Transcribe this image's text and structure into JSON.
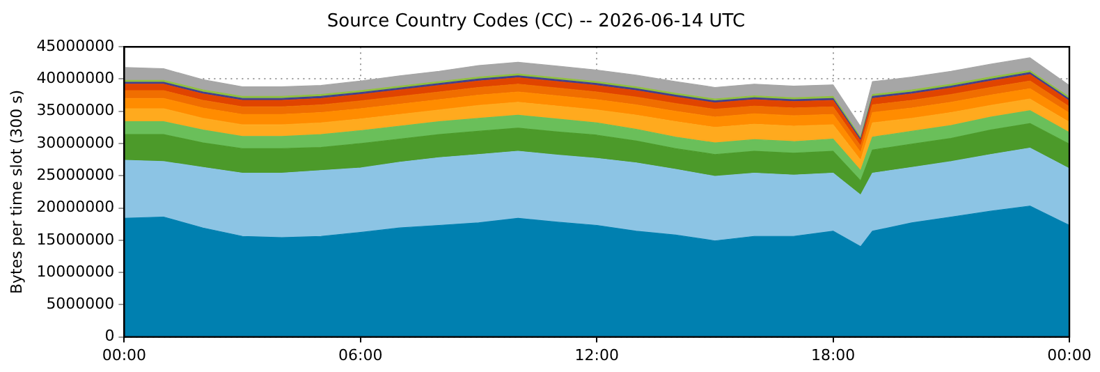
{
  "chart_data": {
    "type": "area",
    "stacked": true,
    "title": "Source Country Codes (CC) -- 2026-06-14 UTC",
    "ylabel": "Bytes per time slot (300 s)",
    "x": [
      0,
      1,
      2,
      3,
      4,
      5,
      6,
      7,
      8,
      9,
      10,
      11,
      12,
      13,
      14,
      15,
      16,
      17,
      18,
      18.7,
      19,
      20,
      21,
      22,
      23,
      24
    ],
    "series": [
      {
        "color": "#0080b0",
        "values": [
          18400000,
          18600000,
          16900000,
          15600000,
          15400000,
          15600000,
          16200000,
          16900000,
          17300000,
          17700000,
          18400000,
          17800000,
          17300000,
          16400000,
          15800000,
          14900000,
          15600000,
          15600000,
          16400000,
          14000000,
          16400000,
          17700000,
          18600000,
          19500000,
          20300000,
          17300000
        ]
      },
      {
        "color": "#8cc4e4",
        "values": [
          9000000,
          8600000,
          9400000,
          9800000,
          10000000,
          10200000,
          10000000,
          10200000,
          10500000,
          10600000,
          10400000,
          10400000,
          10400000,
          10600000,
          10200000,
          10000000,
          9800000,
          9500000,
          9000000,
          8000000,
          9000000,
          8600000,
          8600000,
          8800000,
          9000000,
          8800000
        ]
      },
      {
        "color": "#4c9a2a",
        "values": [
          4000000,
          4200000,
          3800000,
          3800000,
          3800000,
          3600000,
          3800000,
          3600000,
          3600000,
          3600000,
          3600000,
          3600000,
          3600000,
          3400000,
          3200000,
          3400000,
          3400000,
          3400000,
          3400000,
          2200000,
          3600000,
          3600000,
          3600000,
          3800000,
          3800000,
          3800000
        ]
      },
      {
        "color": "#6abf5a",
        "values": [
          2000000,
          2000000,
          2000000,
          1900000,
          1900000,
          2000000,
          2000000,
          2000000,
          2000000,
          2000000,
          2000000,
          2000000,
          1900000,
          1800000,
          1800000,
          1800000,
          1800000,
          1800000,
          1900000,
          1600000,
          2000000,
          2000000,
          2000000,
          2000000,
          2000000,
          1800000
        ]
      },
      {
        "color": "#ffaa1e",
        "values": [
          2000000,
          2000000,
          1800000,
          1800000,
          1800000,
          1800000,
          1800000,
          1800000,
          1800000,
          2000000,
          2000000,
          2000000,
          2000000,
          2200000,
          2400000,
          2400000,
          2400000,
          2400000,
          2200000,
          1600000,
          2200000,
          2000000,
          2000000,
          1800000,
          1800000,
          1600000
        ]
      },
      {
        "color": "#ff8c00",
        "values": [
          1600000,
          1600000,
          1600000,
          1600000,
          1600000,
          1600000,
          1600000,
          1600000,
          1600000,
          1600000,
          1600000,
          1600000,
          1600000,
          1600000,
          1600000,
          1600000,
          1600000,
          1600000,
          1600000,
          1200000,
          1600000,
          1600000,
          1600000,
          1600000,
          1600000,
          1400000
        ]
      },
      {
        "color": "#f06e00",
        "values": [
          1200000,
          1200000,
          1200000,
          1200000,
          1200000,
          1200000,
          1200000,
          1200000,
          1200000,
          1200000,
          1200000,
          1200000,
          1200000,
          1200000,
          1200000,
          1200000,
          1200000,
          1200000,
          1200000,
          1000000,
          1200000,
          1200000,
          1200000,
          1200000,
          1200000,
          1000000
        ]
      },
      {
        "color": "#e04400",
        "values": [
          1000000,
          1000000,
          1000000,
          1000000,
          1000000,
          1000000,
          1000000,
          1000000,
          1000000,
          1000000,
          1000000,
          1000000,
          1000000,
          1000000,
          1000000,
          1000000,
          1000000,
          1000000,
          1000000,
          800000,
          1000000,
          1000000,
          1000000,
          1000000,
          1000000,
          900000
        ]
      },
      {
        "color": "#404090",
        "values": [
          300000,
          300000,
          300000,
          300000,
          300000,
          300000,
          300000,
          300000,
          300000,
          300000,
          300000,
          300000,
          300000,
          300000,
          300000,
          300000,
          300000,
          300000,
          300000,
          300000,
          300000,
          300000,
          300000,
          300000,
          300000,
          300000
        ]
      },
      {
        "color": "#90c040",
        "values": [
          300000,
          300000,
          300000,
          300000,
          300000,
          300000,
          300000,
          300000,
          300000,
          300000,
          300000,
          300000,
          300000,
          300000,
          300000,
          300000,
          300000,
          300000,
          300000,
          300000,
          300000,
          300000,
          300000,
          300000,
          300000,
          300000
        ]
      },
      {
        "color": "#a6a6a6",
        "values": [
          2000000,
          1800000,
          1600000,
          1500000,
          1500000,
          1400000,
          1500000,
          1600000,
          1600000,
          1800000,
          1800000,
          1800000,
          1800000,
          1800000,
          1800000,
          1800000,
          1800000,
          1800000,
          1800000,
          1600000,
          2000000,
          2000000,
          2000000,
          2000000,
          2000000,
          1800000
        ]
      }
    ],
    "xlim": [
      0,
      24
    ],
    "xticks": [
      {
        "value": 0,
        "label": "00:00"
      },
      {
        "value": 6,
        "label": "06:00"
      },
      {
        "value": 12,
        "label": "12:00"
      },
      {
        "value": 18,
        "label": "18:00"
      },
      {
        "value": 24,
        "label": "00:00"
      }
    ],
    "ylim": [
      0,
      45000000
    ],
    "yticks": [
      0,
      5000000,
      10000000,
      15000000,
      20000000,
      25000000,
      30000000,
      35000000,
      40000000,
      45000000
    ],
    "grid": true,
    "legend": false
  }
}
